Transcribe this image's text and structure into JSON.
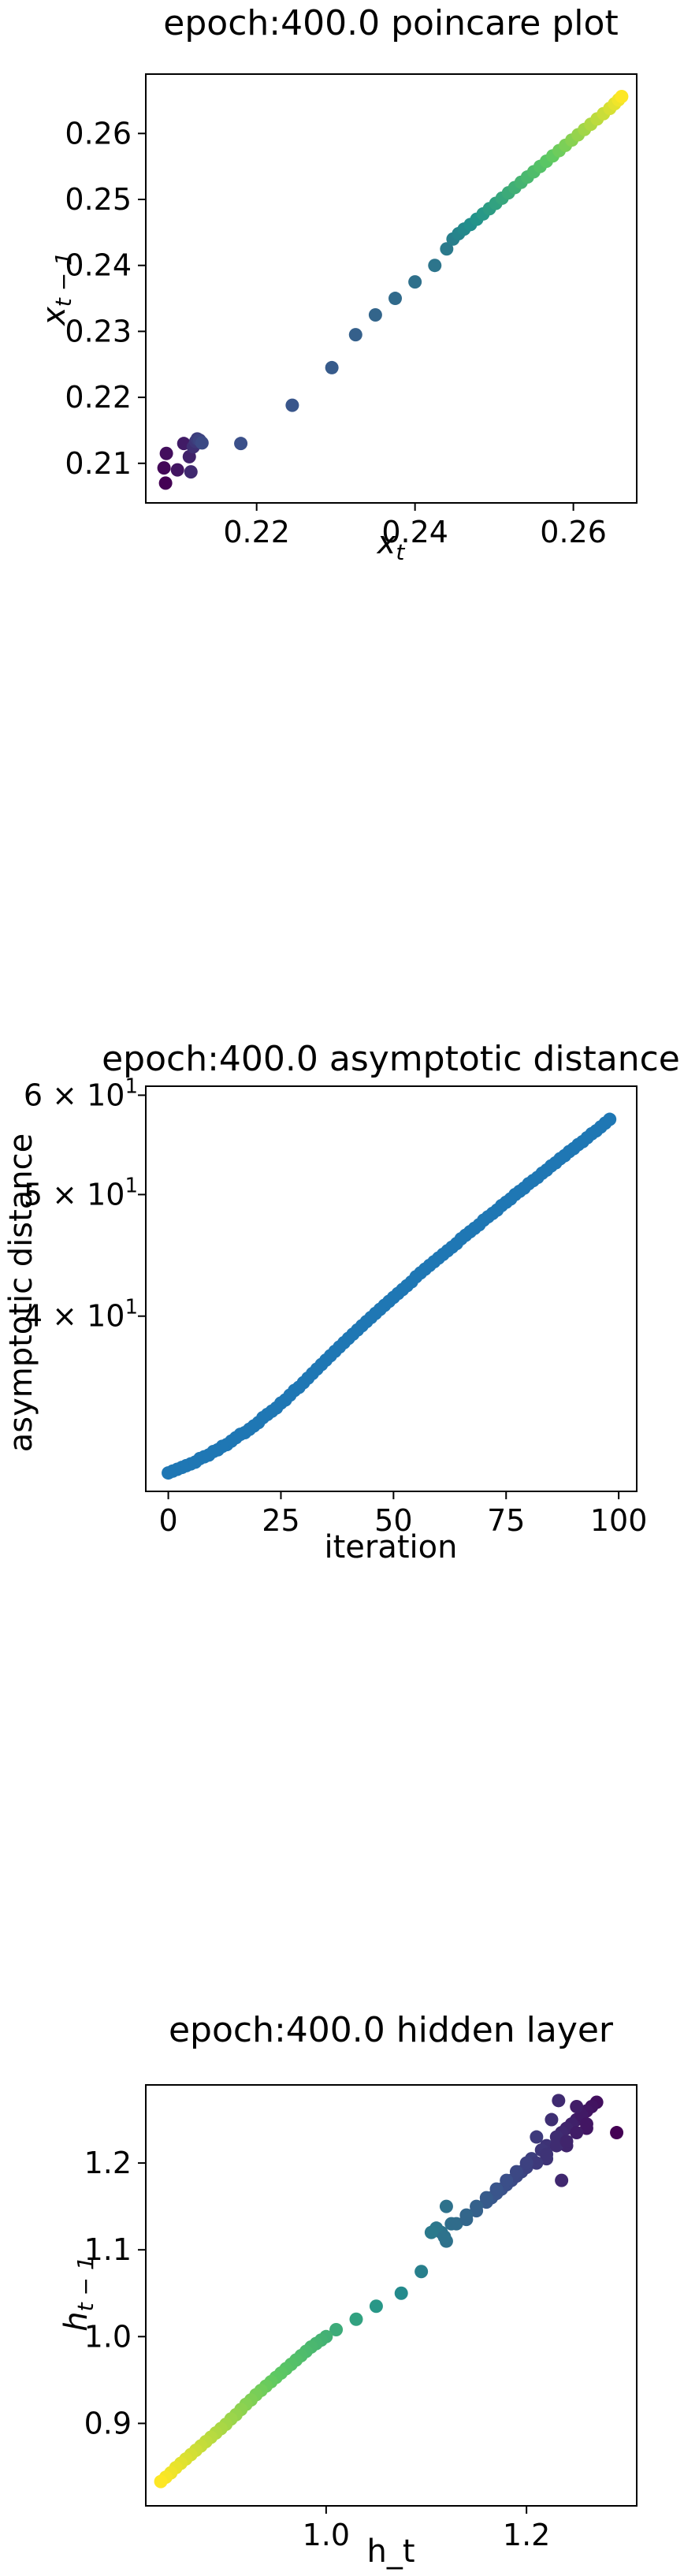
{
  "chart_data": [
    {
      "type": "scatter",
      "title": "epoch:400.0 poincare plot",
      "xlabel": "x_t",
      "ylabel": "x_{t-1}",
      "xlim": [
        0.206,
        0.268
      ],
      "ylim": [
        0.204,
        0.269
      ],
      "xticks": [
        "0.22",
        "0.24",
        "0.26"
      ],
      "xtick_values": [
        0.22,
        0.24,
        0.26
      ],
      "yticks": [
        "0.21",
        "0.22",
        "0.23",
        "0.24",
        "0.25",
        "0.26"
      ],
      "ytick_values": [
        0.21,
        0.22,
        0.23,
        0.24,
        0.25,
        0.26
      ],
      "colormap": [
        "#440154",
        "#3b528b",
        "#21918c",
        "#5ec962",
        "#fde725"
      ],
      "grid": false,
      "points": [
        [
          0.2085,
          0.207
        ],
        [
          0.2083,
          0.2093
        ],
        [
          0.2086,
          0.2115
        ],
        [
          0.21,
          0.209
        ],
        [
          0.2108,
          0.213
        ],
        [
          0.2115,
          0.211
        ],
        [
          0.2117,
          0.2087
        ],
        [
          0.212,
          0.2125
        ],
        [
          0.2123,
          0.2133
        ],
        [
          0.2125,
          0.2137
        ],
        [
          0.2128,
          0.2135
        ],
        [
          0.2131,
          0.2131
        ],
        [
          0.218,
          0.213
        ],
        [
          0.2245,
          0.2188
        ],
        [
          0.2295,
          0.2245
        ],
        [
          0.2325,
          0.2295
        ],
        [
          0.235,
          0.2325
        ],
        [
          0.2375,
          0.235
        ],
        [
          0.24,
          0.2375
        ],
        [
          0.2425,
          0.24
        ],
        [
          0.244,
          0.2425
        ],
        [
          0.2448,
          0.244
        ],
        [
          0.2455,
          0.2448
        ],
        [
          0.2462,
          0.2455
        ],
        [
          0.247,
          0.2462
        ],
        [
          0.2478,
          0.247
        ],
        [
          0.2486,
          0.2478
        ],
        [
          0.2494,
          0.2486
        ],
        [
          0.2502,
          0.2494
        ],
        [
          0.251,
          0.2502
        ],
        [
          0.2518,
          0.251
        ],
        [
          0.2526,
          0.2518
        ],
        [
          0.2534,
          0.2526
        ],
        [
          0.2542,
          0.2534
        ],
        [
          0.255,
          0.2542
        ],
        [
          0.2558,
          0.255
        ],
        [
          0.2566,
          0.2558
        ],
        [
          0.2574,
          0.2566
        ],
        [
          0.2582,
          0.2574
        ],
        [
          0.259,
          0.2582
        ],
        [
          0.2598,
          0.259
        ],
        [
          0.2606,
          0.2598
        ],
        [
          0.2614,
          0.2606
        ],
        [
          0.2622,
          0.2614
        ],
        [
          0.263,
          0.2622
        ],
        [
          0.2638,
          0.263
        ],
        [
          0.2646,
          0.2638
        ],
        [
          0.2652,
          0.2645
        ],
        [
          0.2657,
          0.2651
        ],
        [
          0.2661,
          0.2656
        ]
      ]
    },
    {
      "type": "scatter",
      "title": "epoch:400.0 asymptotic distance",
      "xlabel": "iteration",
      "ylabel": "asymptotic distance",
      "yscale": "log",
      "xlim": [
        -5,
        104
      ],
      "ylim": [
        29,
        61
      ],
      "xticks": [
        "0",
        "25",
        "50",
        "75",
        "100"
      ],
      "xtick_values": [
        0,
        25,
        50,
        75,
        100
      ],
      "ytick_values": [
        40,
        50,
        60
      ],
      "ytick_mantissa": [
        "4",
        "5",
        "6"
      ],
      "ytick_base": "10",
      "ytick_exponent": "1",
      "color": "#1f77b4",
      "grid": false,
      "x_start": 0,
      "x_step": 1,
      "y": [
        30.0,
        30.1,
        30.2,
        30.3,
        30.4,
        30.5,
        30.6,
        30.8,
        30.9,
        31.0,
        31.2,
        31.3,
        31.5,
        31.6,
        31.8,
        32.0,
        32.2,
        32.3,
        32.5,
        32.7,
        32.9,
        33.2,
        33.4,
        33.6,
        33.8,
        34.1,
        34.3,
        34.6,
        34.9,
        35.1,
        35.4,
        35.7,
        36.0,
        36.3,
        36.6,
        36.9,
        37.2,
        37.5,
        37.8,
        38.1,
        38.4,
        38.7,
        39.0,
        39.3,
        39.6,
        39.9,
        40.2,
        40.5,
        40.8,
        41.1,
        41.4,
        41.7,
        42.0,
        42.3,
        42.6,
        43.0,
        43.3,
        43.6,
        43.9,
        44.2,
        44.5,
        44.8,
        45.1,
        45.4,
        45.7,
        46.1,
        46.4,
        46.7,
        47.0,
        47.3,
        47.7,
        48.0,
        48.3,
        48.6,
        49.0,
        49.3,
        49.6,
        50.0,
        50.3,
        50.6,
        51.0,
        51.3,
        51.6,
        52.0,
        52.3,
        52.7,
        53.0,
        53.4,
        53.7,
        54.1,
        54.4,
        54.8,
        55.1,
        55.5,
        55.9,
        56.2,
        56.6,
        57.0,
        57.4
      ]
    },
    {
      "type": "scatter",
      "title": "epoch:400.0 hidden layer",
      "xlabel": "h_t",
      "ylabel": "h_{t-1}",
      "xlim": [
        0.82,
        1.31
      ],
      "ylim": [
        0.805,
        1.29
      ],
      "xticks": [
        "1.0",
        "1.2"
      ],
      "xtick_values": [
        1.0,
        1.2
      ],
      "yticks": [
        "0.9",
        "1.0",
        "1.1",
        "1.2"
      ],
      "ytick_values": [
        0.9,
        1.0,
        1.1,
        1.2
      ],
      "colormap": [
        "#440154",
        "#3b528b",
        "#21918c",
        "#5ec962",
        "#fde725"
      ],
      "grid": false,
      "points": [
        [
          1.29,
          1.235
        ],
        [
          1.27,
          1.27
        ],
        [
          1.265,
          1.265
        ],
        [
          1.26,
          1.26
        ],
        [
          1.255,
          1.255
        ],
        [
          1.25,
          1.25
        ],
        [
          1.245,
          1.245
        ],
        [
          1.24,
          1.24
        ],
        [
          1.235,
          1.18
        ],
        [
          1.22,
          1.205
        ],
        [
          1.225,
          1.25
        ],
        [
          1.22,
          1.22
        ],
        [
          1.215,
          1.215
        ],
        [
          1.21,
          1.23
        ],
        [
          1.205,
          1.205
        ],
        [
          1.232,
          1.272
        ],
        [
          1.255,
          1.255
        ],
        [
          1.25,
          1.265
        ],
        [
          1.26,
          1.24
        ],
        [
          1.24,
          1.22
        ],
        [
          1.235,
          1.235
        ],
        [
          1.23,
          1.23
        ],
        [
          1.125,
          1.13
        ],
        [
          1.12,
          1.15
        ],
        [
          1.115,
          1.12
        ],
        [
          1.11,
          1.125
        ],
        [
          1.105,
          1.12
        ],
        [
          1.12,
          1.11
        ],
        [
          1.118,
          1.115
        ],
        [
          1.13,
          1.13
        ],
        [
          1.14,
          1.135
        ],
        [
          1.15,
          1.145
        ],
        [
          1.16,
          1.155
        ],
        [
          1.165,
          1.16
        ],
        [
          1.17,
          1.165
        ],
        [
          1.175,
          1.17
        ],
        [
          1.18,
          1.175
        ],
        [
          1.185,
          1.18
        ],
        [
          1.19,
          1.185
        ],
        [
          1.195,
          1.19
        ],
        [
          1.2,
          1.195
        ],
        [
          1.21,
          1.2
        ],
        [
          1.22,
          1.21
        ],
        [
          1.23,
          1.22
        ],
        [
          1.24,
          1.225
        ],
        [
          1.25,
          1.235
        ],
        [
          1.26,
          1.245
        ],
        [
          1.14,
          1.14
        ],
        [
          1.15,
          1.15
        ],
        [
          1.16,
          1.16
        ],
        [
          1.17,
          1.17
        ],
        [
          1.18,
          1.18
        ],
        [
          1.19,
          1.19
        ],
        [
          1.2,
          1.2
        ],
        [
          1.095,
          1.075
        ],
        [
          1.075,
          1.05
        ],
        [
          1.05,
          1.035
        ],
        [
          1.03,
          1.02
        ],
        [
          1.01,
          1.008
        ],
        [
          1.0,
          1.0
        ],
        [
          0.995,
          0.996
        ],
        [
          0.99,
          0.992
        ],
        [
          0.985,
          0.988
        ],
        [
          0.98,
          0.983
        ],
        [
          0.975,
          0.978
        ],
        [
          0.97,
          0.973
        ],
        [
          0.965,
          0.968
        ],
        [
          0.96,
          0.963
        ],
        [
          0.955,
          0.958
        ],
        [
          0.95,
          0.953
        ],
        [
          0.945,
          0.948
        ],
        [
          0.94,
          0.943
        ],
        [
          0.935,
          0.938
        ],
        [
          0.93,
          0.933
        ],
        [
          0.925,
          0.927
        ],
        [
          0.92,
          0.922
        ],
        [
          0.915,
          0.916
        ],
        [
          0.91,
          0.91
        ],
        [
          0.905,
          0.905
        ],
        [
          0.9,
          0.899
        ],
        [
          0.895,
          0.894
        ],
        [
          0.89,
          0.889
        ],
        [
          0.885,
          0.884
        ],
        [
          0.88,
          0.879
        ],
        [
          0.875,
          0.874
        ],
        [
          0.87,
          0.869
        ],
        [
          0.865,
          0.864
        ],
        [
          0.86,
          0.859
        ],
        [
          0.855,
          0.854
        ],
        [
          0.85,
          0.849
        ],
        [
          0.845,
          0.843
        ],
        [
          0.84,
          0.838
        ],
        [
          0.835,
          0.833
        ]
      ]
    }
  ]
}
